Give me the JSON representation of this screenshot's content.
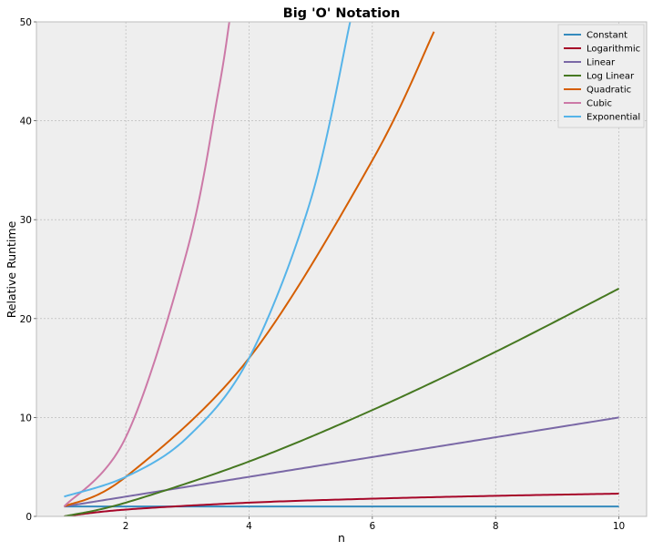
{
  "chart_data": {
    "type": "line",
    "title": "Big 'O' Notation",
    "xlabel": "n",
    "ylabel": "Relative Runtime",
    "xlim": [
      0.55,
      10.45
    ],
    "ylim": [
      0,
      50
    ],
    "x_ticks": [
      2,
      4,
      6,
      8,
      10
    ],
    "y_ticks": [
      0,
      10,
      20,
      30,
      40,
      50
    ],
    "grid": true,
    "legend_position": "top-right",
    "x_domain": [
      1,
      10
    ],
    "series": [
      {
        "name": "Constant",
        "formula": "1",
        "color": "#348ABD",
        "points": [
          [
            1,
            1
          ],
          [
            2,
            1
          ],
          [
            4,
            1
          ],
          [
            6,
            1
          ],
          [
            8,
            1
          ],
          [
            10,
            1
          ]
        ]
      },
      {
        "name": "Logarithmic",
        "formula": "ln(n)",
        "color": "#A60628",
        "points": [
          [
            1,
            0
          ],
          [
            2,
            0.69
          ],
          [
            4,
            1.39
          ],
          [
            6,
            1.79
          ],
          [
            8,
            2.08
          ],
          [
            10,
            2.3
          ]
        ]
      },
      {
        "name": "Linear",
        "formula": "n",
        "color": "#7A68A6",
        "points": [
          [
            1,
            1
          ],
          [
            2,
            2
          ],
          [
            4,
            4
          ],
          [
            6,
            6
          ],
          [
            8,
            8
          ],
          [
            10,
            10
          ]
        ]
      },
      {
        "name": "Log Linear",
        "formula": "n*ln(n)",
        "color": "#467821",
        "points": [
          [
            1,
            0
          ],
          [
            2,
            1.39
          ],
          [
            4,
            5.55
          ],
          [
            6,
            10.75
          ],
          [
            8,
            16.64
          ],
          [
            10,
            23.03
          ]
        ]
      },
      {
        "name": "Quadratic",
        "formula": "n^2",
        "color": "#D55E00",
        "points": [
          [
            1,
            1
          ],
          [
            2,
            4
          ],
          [
            4,
            16
          ],
          [
            6,
            36
          ],
          [
            7,
            49
          ]
        ]
      },
      {
        "name": "Cubic",
        "formula": "n^3",
        "color": "#CC79A7",
        "points": [
          [
            1,
            1
          ],
          [
            2,
            8
          ],
          [
            3,
            27
          ],
          [
            3.5,
            42.9
          ],
          [
            3.68,
            50
          ]
        ]
      },
      {
        "name": "Exponential",
        "formula": "2^n",
        "color": "#56B4E9",
        "points": [
          [
            1,
            2
          ],
          [
            2,
            4
          ],
          [
            3,
            8
          ],
          [
            4,
            16
          ],
          [
            5,
            32
          ],
          [
            5.64,
            50
          ]
        ]
      }
    ]
  }
}
